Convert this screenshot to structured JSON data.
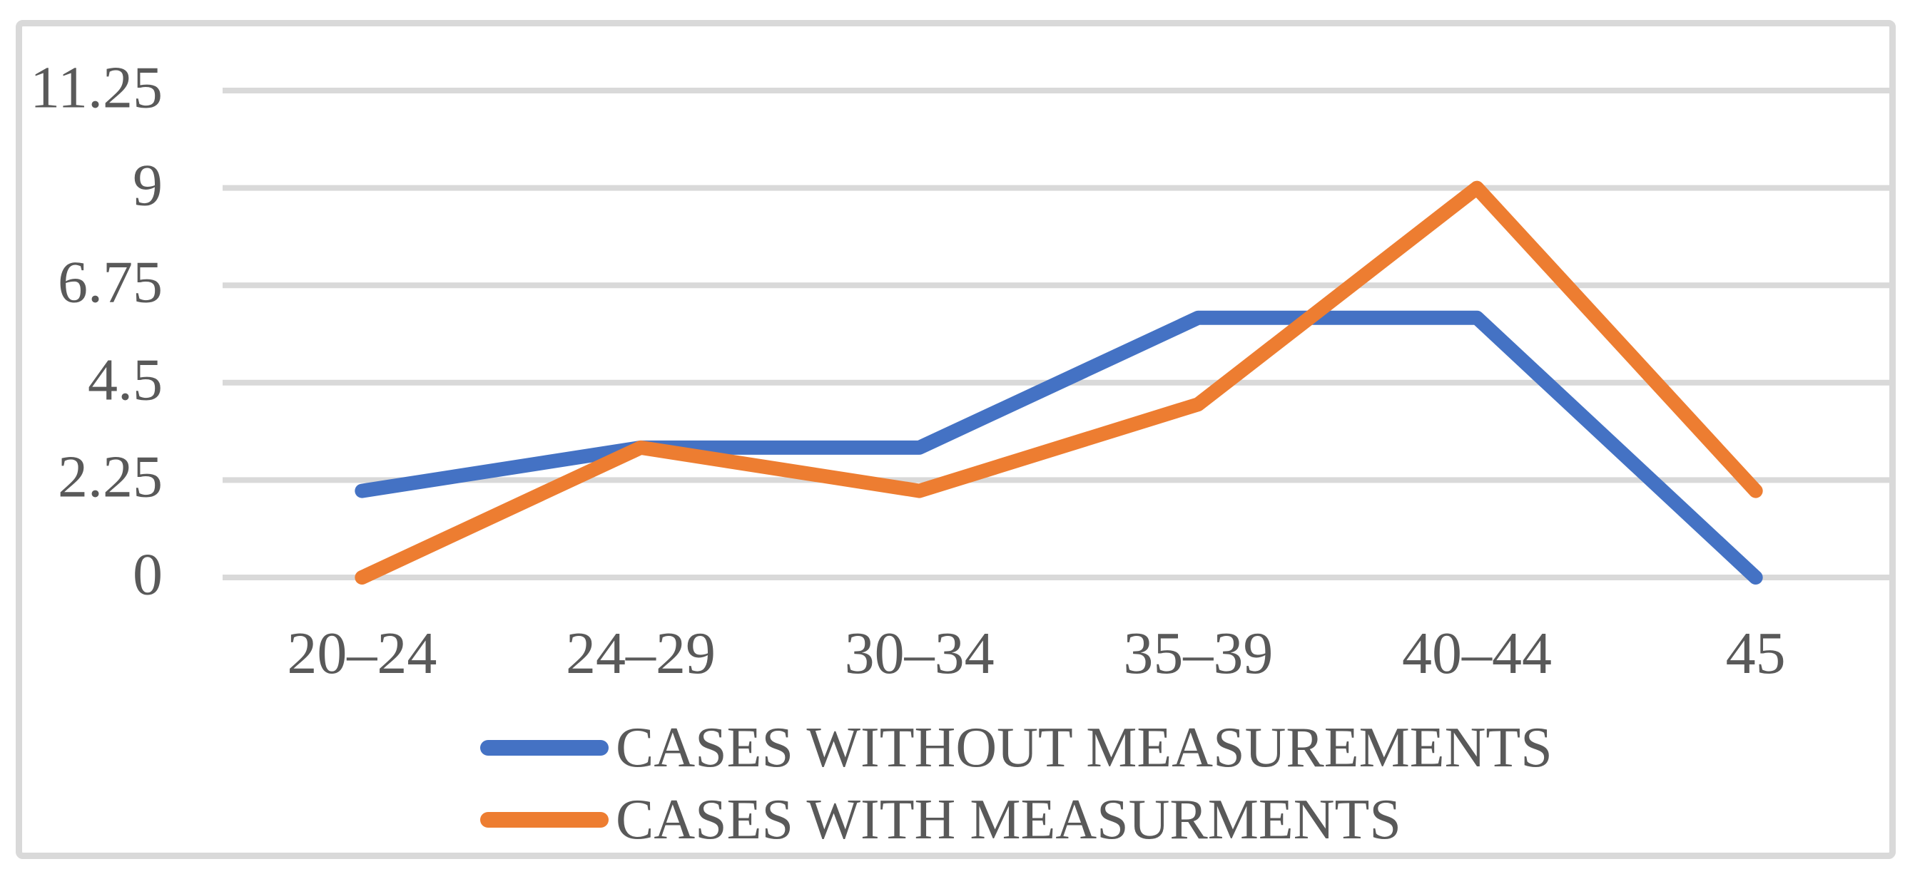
{
  "chart_data": {
    "type": "line",
    "title": "",
    "xlabel": "",
    "ylabel": "",
    "categories": [
      "20–24",
      "24–29",
      "30–34",
      "35–39",
      "40–44",
      "45"
    ],
    "series": [
      {
        "name": "CASES WITHOUT MEASUREMENTS",
        "color": "#4472C4",
        "values": [
          2,
          3,
          3,
          6,
          6,
          0
        ]
      },
      {
        "name": "CASES WITH MEASURMENTS",
        "color": "#ED7D31",
        "values": [
          0,
          3,
          2,
          4,
          9,
          2
        ]
      }
    ],
    "ytick_labels": [
      "0",
      "2.25",
      "4.5",
      "6.75",
      "9",
      "11.25"
    ],
    "ytick_values": [
      0,
      2.25,
      4.5,
      6.75,
      9,
      11.25
    ],
    "ylim": [
      0,
      11.25
    ],
    "grid": true,
    "legend_position": "bottom-left",
    "gridline_color": "#D9D9D9",
    "frame_color": "#D9D9D9",
    "text_color": "#595959",
    "background_color": "#FFFFFF"
  }
}
